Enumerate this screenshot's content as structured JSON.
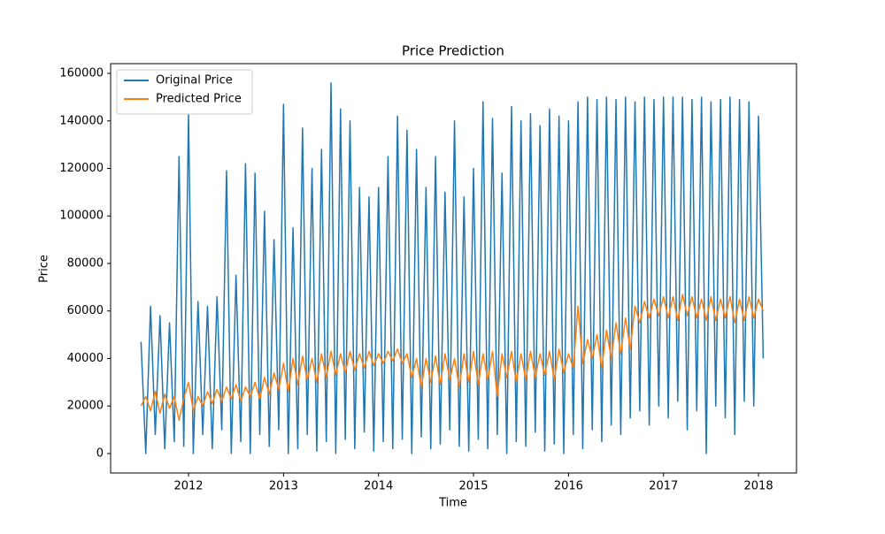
{
  "chart_data": {
    "type": "line",
    "title": "Price Prediction",
    "x_label": "Time",
    "y_label": "Price",
    "x": [
      2011.5,
      2011.55,
      2011.6,
      2011.65,
      2011.7,
      2011.75,
      2011.8,
      2011.85,
      2011.9,
      2011.95,
      2012.0,
      2012.05,
      2012.1,
      2012.15,
      2012.2,
      2012.25,
      2012.3,
      2012.35,
      2012.4,
      2012.45,
      2012.5,
      2012.55,
      2012.6,
      2012.65,
      2012.7,
      2012.75,
      2012.8,
      2012.85,
      2012.9,
      2012.95,
      2013.0,
      2013.05,
      2013.1,
      2013.15,
      2013.2,
      2013.25,
      2013.3,
      2013.35,
      2013.4,
      2013.45,
      2013.5,
      2013.55,
      2013.6,
      2013.65,
      2013.7,
      2013.75,
      2013.8,
      2013.85,
      2013.9,
      2013.95,
      2014.0,
      2014.05,
      2014.1,
      2014.15,
      2014.2,
      2014.25,
      2014.3,
      2014.35,
      2014.4,
      2014.45,
      2014.5,
      2014.55,
      2014.6,
      2014.65,
      2014.7,
      2014.75,
      2014.8,
      2014.85,
      2014.9,
      2014.95,
      2015.0,
      2015.05,
      2015.1,
      2015.15,
      2015.2,
      2015.25,
      2015.3,
      2015.35,
      2015.4,
      2015.45,
      2015.5,
      2015.55,
      2015.6,
      2015.65,
      2015.7,
      2015.75,
      2015.8,
      2015.85,
      2015.9,
      2015.95,
      2016.0,
      2016.05,
      2016.1,
      2016.15,
      2016.2,
      2016.25,
      2016.3,
      2016.35,
      2016.4,
      2016.45,
      2016.5,
      2016.55,
      2016.6,
      2016.65,
      2016.7,
      2016.75,
      2016.8,
      2016.85,
      2016.9,
      2016.95,
      2017.0,
      2017.05,
      2017.1,
      2017.15,
      2017.2,
      2017.25,
      2017.3,
      2017.35,
      2017.4,
      2017.45,
      2017.5,
      2017.55,
      2017.6,
      2017.65,
      2017.7,
      2017.75,
      2017.8,
      2017.85,
      2017.9,
      2017.95,
      2018.0,
      2018.05
    ],
    "series": [
      {
        "name": "Original Price",
        "color": "#1f77b4",
        "values": [
          47000,
          0,
          62000,
          8000,
          58000,
          2000,
          55000,
          5000,
          125000,
          3000,
          143000,
          0,
          64000,
          8000,
          62000,
          2000,
          66000,
          10000,
          119000,
          0,
          75000,
          5000,
          122000,
          0,
          118000,
          8000,
          102000,
          3000,
          90000,
          10000,
          147000,
          0,
          95000,
          2000,
          137000,
          8000,
          120000,
          1000,
          128000,
          5000,
          156000,
          0,
          145000,
          6000,
          140000,
          2000,
          112000,
          9000,
          108000,
          1000,
          112000,
          5000,
          125000,
          2000,
          142000,
          6000,
          136000,
          0,
          128000,
          7000,
          112000,
          2000,
          125000,
          4000,
          110000,
          10000,
          140000,
          3000,
          108000,
          1000,
          120000,
          6000,
          148000,
          2000,
          141000,
          8000,
          118000,
          0,
          146000,
          5000,
          140000,
          3000,
          143000,
          9000,
          138000,
          1000,
          145000,
          4000,
          142000,
          0,
          140000,
          8000,
          148000,
          2000,
          150000,
          10000,
          149000,
          5000,
          150000,
          12000,
          149000,
          8000,
          150000,
          15000,
          148000,
          18000,
          150000,
          12000,
          149000,
          20000,
          150000,
          15000,
          150000,
          22000,
          150000,
          10000,
          149000,
          18000,
          150000,
          0,
          148000,
          20000,
          149000,
          15000,
          150000,
          8000,
          149000,
          22000,
          148000,
          20000,
          142000,
          40000
        ]
      },
      {
        "name": "Predicted Price",
        "color": "#ff7f0e",
        "values": [
          20000,
          24000,
          18000,
          26000,
          17000,
          25000,
          19000,
          24000,
          14000,
          23000,
          30000,
          18000,
          24000,
          20000,
          26000,
          21000,
          27000,
          22000,
          28000,
          23000,
          29000,
          22000,
          28000,
          24000,
          30000,
          23000,
          32000,
          25000,
          34000,
          27000,
          38000,
          26000,
          40000,
          29000,
          41000,
          31000,
          40000,
          30000,
          42000,
          32000,
          43000,
          33000,
          42000,
          34000,
          43000,
          35000,
          42000,
          36000,
          43000,
          37000,
          42000,
          38000,
          43000,
          39000,
          44000,
          38000,
          42000,
          32000,
          40000,
          28000,
          40000,
          30000,
          41000,
          29000,
          42000,
          31000,
          40000,
          28000,
          42000,
          30000,
          43000,
          29000,
          42000,
          31000,
          43000,
          24000,
          42000,
          32000,
          43000,
          30000,
          42000,
          31000,
          43000,
          32000,
          42000,
          33000,
          43000,
          31000,
          44000,
          34000,
          42000,
          36000,
          62000,
          38000,
          48000,
          40000,
          50000,
          36000,
          52000,
          40000,
          55000,
          42000,
          57000,
          44000,
          62000,
          55000,
          64000,
          57000,
          65000,
          58000,
          66000,
          57000,
          66000,
          56000,
          67000,
          58000,
          66000,
          57000,
          65000,
          56000,
          66000,
          56000,
          65000,
          57000,
          66000,
          55000,
          65000,
          56000,
          66000,
          57000,
          65000,
          60000
        ]
      }
    ],
    "xlim": [
      2011.18,
      2018.4
    ],
    "xticks": [
      2012,
      2013,
      2014,
      2015,
      2016,
      2017,
      2018
    ],
    "ylim": [
      -8200,
      164100
    ],
    "yticks": [
      0,
      20000,
      40000,
      60000,
      80000,
      100000,
      120000,
      140000,
      160000
    ],
    "legend": "upper left"
  }
}
